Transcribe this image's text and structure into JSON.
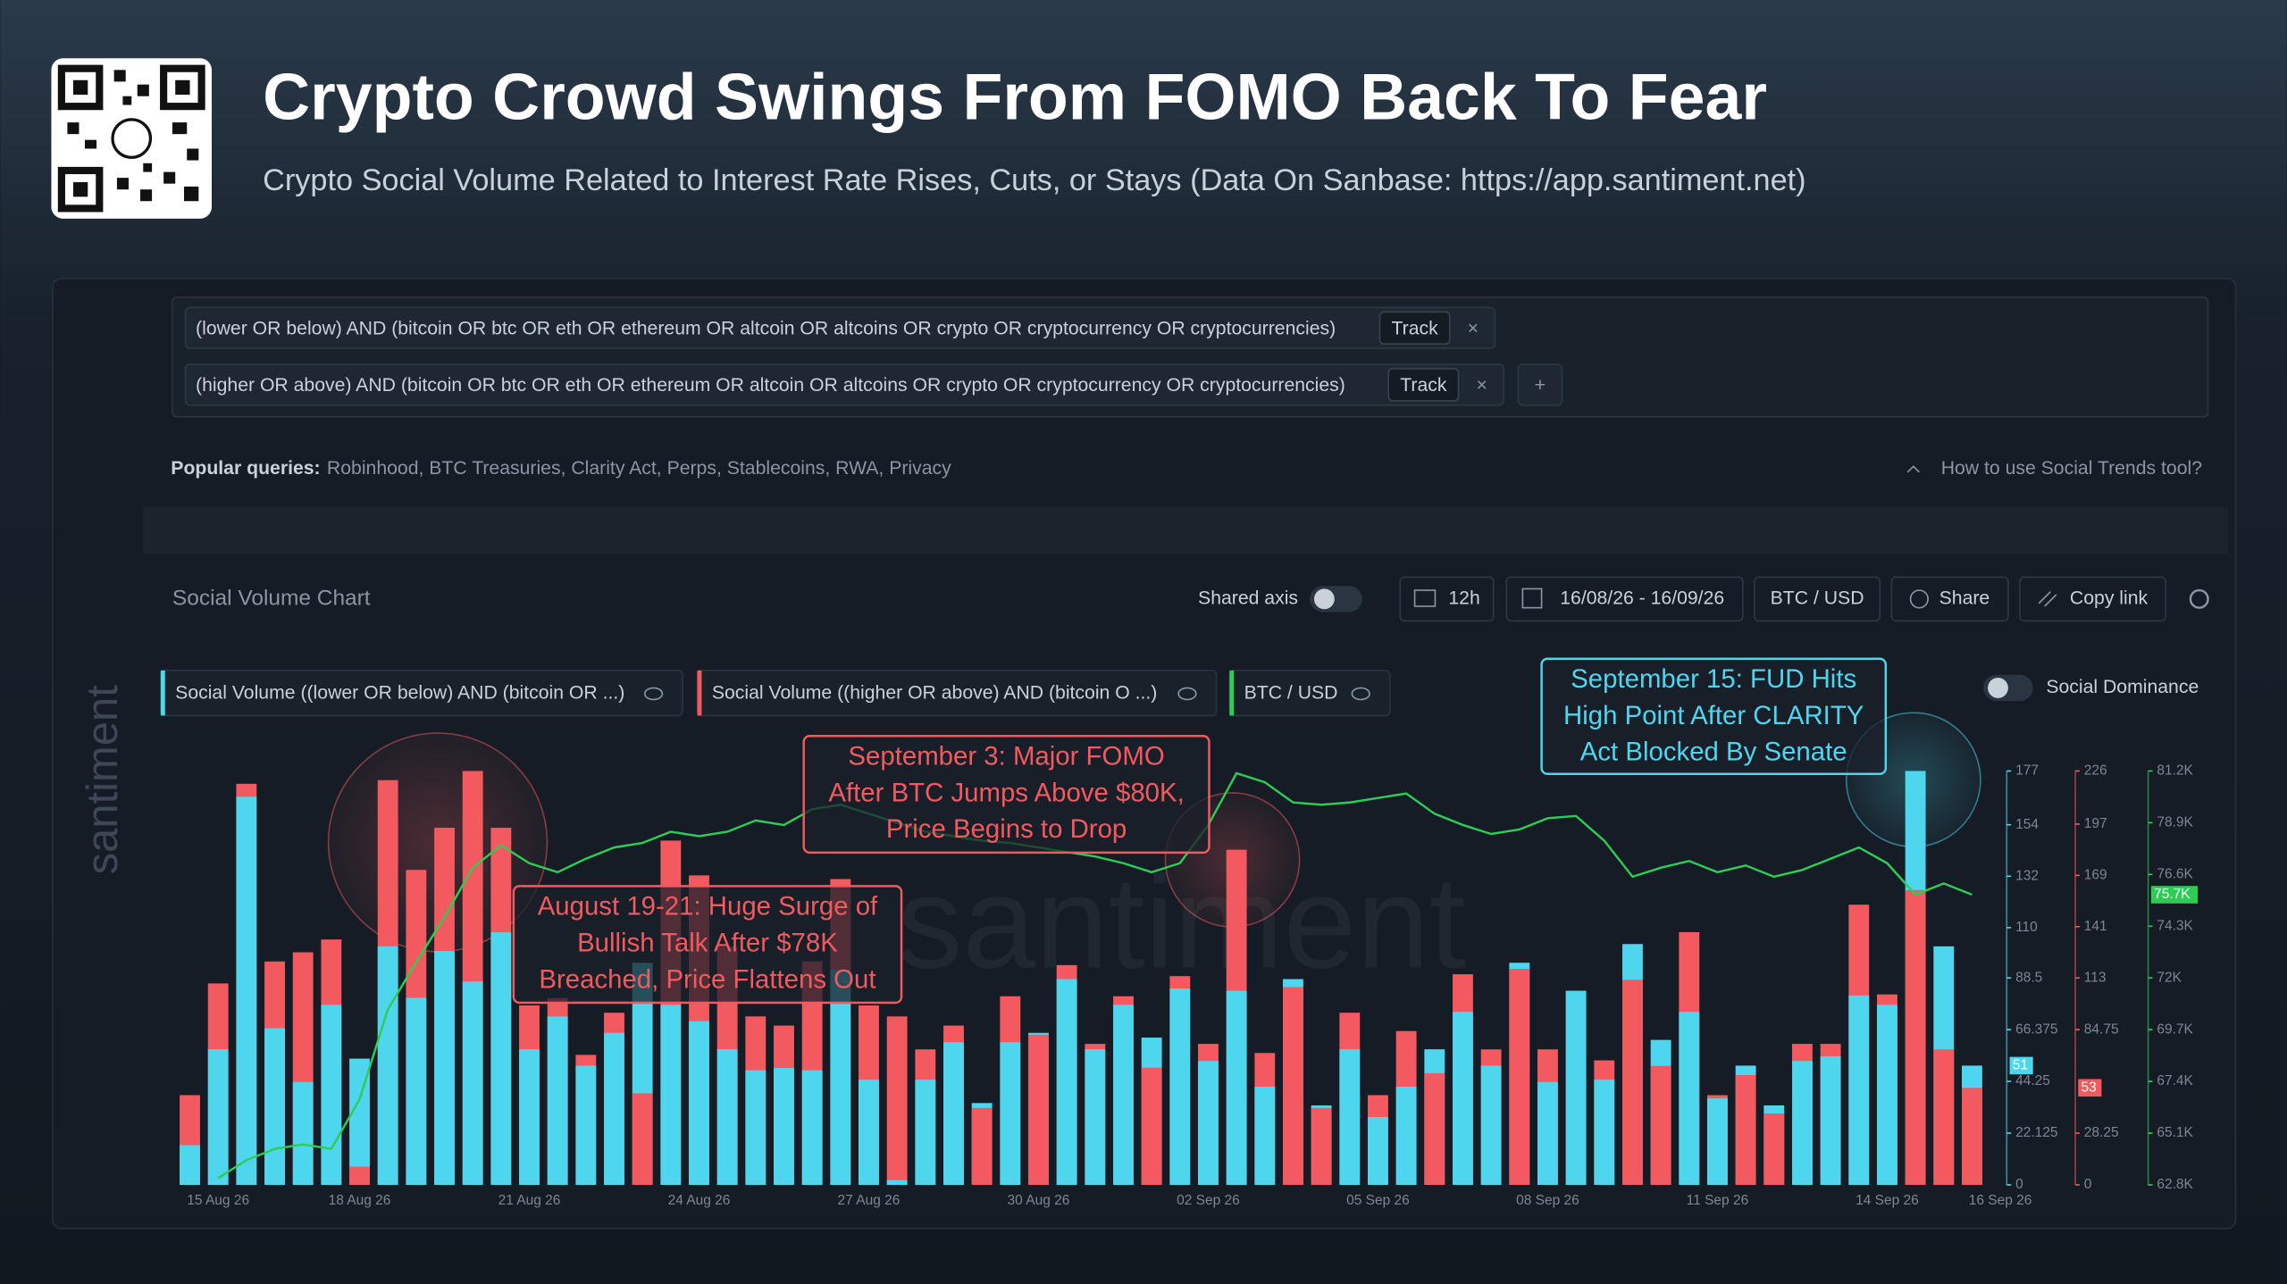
{
  "header": {
    "title": "Crypto Crowd Swings From FOMO Back To Fear",
    "subtitle": "Crypto Social Volume Related to Interest Rate Rises, Cuts, or Stays (Data On Sanbase: https://app.santiment.net)"
  },
  "queries": [
    {
      "text": "(lower OR below) AND (bitcoin OR btc OR eth OR ethereum OR altcoin OR altcoins OR crypto OR cryptocurrency OR cryptocurrencies)",
      "button": "Track"
    },
    {
      "text": "(higher OR above) AND (bitcoin OR btc OR eth OR ethereum OR altcoin OR altcoins OR crypto OR cryptocurrency OR cryptocurrencies)",
      "button": "Track"
    }
  ],
  "popular": {
    "label": "Popular queries:",
    "items": "Robinhood, BTC Treasuries, Clarity Act, Perps, Stablecoins, RWA, Privacy",
    "help": "How to use Social Trends tool?"
  },
  "toolbar": {
    "chart_title": "Social Volume Chart",
    "shared_axis": "Shared axis",
    "interval": "12h",
    "dates": "16/08/26 - 16/09/26",
    "pair": "BTC / USD",
    "share": "Share",
    "copy": "Copy link",
    "dominance": "Social Dominance"
  },
  "watermark": "santiment",
  "chart_data": {
    "type": "bar",
    "categories": [
      null,
      "15 Aug 26",
      null,
      null,
      null,
      null,
      "18 Aug 26",
      null,
      null,
      null,
      null,
      null,
      "21 Aug 26",
      null,
      null,
      null,
      null,
      null,
      "24 Aug 26",
      null,
      null,
      null,
      null,
      null,
      "27 Aug 26",
      null,
      null,
      null,
      null,
      null,
      "30 Aug 26",
      null,
      null,
      null,
      null,
      null,
      "02 Sep 26",
      null,
      null,
      null,
      null,
      null,
      "05 Sep 26",
      null,
      null,
      null,
      null,
      null,
      "08 Sep 26",
      null,
      null,
      null,
      null,
      null,
      "11 Sep 26",
      null,
      null,
      null,
      null,
      null,
      "14 Sep 26",
      null,
      null,
      null,
      "16 Sep 26"
    ],
    "series": [
      {
        "name": "Social Volume ((lower OR below) AND (bitcoin OR ...)",
        "color": "#4fd6ef",
        "axis": "y",
        "current": 51,
        "values": [
          17,
          58,
          166,
          67,
          44,
          77,
          54,
          102,
          80,
          100,
          87,
          108,
          58,
          72,
          51,
          65,
          95,
          77,
          70,
          58,
          49,
          50,
          49,
          92,
          45,
          2,
          45,
          61,
          35,
          61,
          65,
          88,
          58,
          77,
          63,
          84,
          53,
          83,
          42,
          88,
          34,
          58,
          29,
          42,
          58,
          74,
          51,
          95,
          44,
          83,
          45,
          103,
          62,
          74,
          37,
          51,
          34,
          53,
          55,
          81,
          77,
          177,
          102,
          51,
          null
        ]
      },
      {
        "name": "Social Volume ((higher OR above) AND (bitcoin O ...)",
        "color": "#f25a5f",
        "axis": "y2",
        "current": 53,
        "values": [
          49,
          110,
          219,
          122,
          127,
          134,
          10,
          221,
          172,
          195,
          226,
          195,
          98,
          102,
          71,
          94,
          50,
          188,
          169,
          130,
          92,
          87,
          122,
          167,
          98,
          92,
          74,
          87,
          42,
          103,
          82,
          120,
          77,
          103,
          64,
          114,
          77,
          183,
          72,
          108,
          42,
          94,
          49,
          84,
          61,
          115,
          74,
          118,
          74,
          106,
          68,
          112,
          65,
          138,
          49,
          60,
          39,
          77,
          77,
          153,
          104,
          161,
          74,
          53,
          null
        ]
      },
      {
        "name": "BTC / USD",
        "color": "#2fcc55",
        "axis": "y3",
        "current": 75700,
        "current_label": "75.7K",
        "values": [
          null,
          63100,
          63900,
          64400,
          64600,
          64400,
          66600,
          70600,
          72700,
          74700,
          76900,
          77900,
          77100,
          76700,
          77300,
          77800,
          78000,
          78500,
          78300,
          78500,
          79000,
          78800,
          79500,
          79700,
          79300,
          78900,
          78500,
          78300,
          78100,
          78000,
          77800,
          77600,
          77400,
          77100,
          76700,
          77100,
          78800,
          81100,
          80700,
          79800,
          79700,
          79800,
          80000,
          80200,
          79300,
          78800,
          78400,
          78600,
          79100,
          79200,
          78100,
          76500,
          76900,
          77200,
          76700,
          77000,
          76500,
          76800,
          77300,
          77800,
          77100,
          75700,
          76200,
          75700,
          null
        ]
      }
    ],
    "ylim": [
      0,
      177
    ],
    "yticks": [
      0,
      22.125,
      44.25,
      66.375,
      88.5,
      110,
      132,
      154,
      177
    ],
    "y2lim": [
      0,
      226
    ],
    "y2ticks": [
      0,
      28.25,
      84.75,
      113,
      141,
      169,
      197,
      226
    ],
    "y3lim": [
      62800,
      81200
    ],
    "y3ticks": [
      {
        "value": 62800,
        "label": "62.8K"
      },
      {
        "value": 65100,
        "label": "65.1K"
      },
      {
        "value": 67400,
        "label": "67.4K"
      },
      {
        "value": 69700,
        "label": "69.7K"
      },
      {
        "value": 72000,
        "label": "72K"
      },
      {
        "value": 74300,
        "label": "74.3K"
      },
      {
        "value": 76600,
        "label": "76.6K"
      },
      {
        "value": 78900,
        "label": "78.9K"
      },
      {
        "value": 81200,
        "label": "81.2K"
      }
    ],
    "annotations": [
      {
        "lines": [
          "August 19-21: Huge Surge of",
          "Bullish Talk After $78K",
          "Breached, Price Flattens Out"
        ]
      },
      {
        "lines": [
          "September 3: Major FOMO",
          "After BTC Jumps Above $80K,",
          "Price Begins to Drop"
        ]
      },
      {
        "lines": [
          "September 15: FUD Hits",
          "High Point After CLARITY",
          "Act Blocked By Senate"
        ]
      }
    ]
  }
}
